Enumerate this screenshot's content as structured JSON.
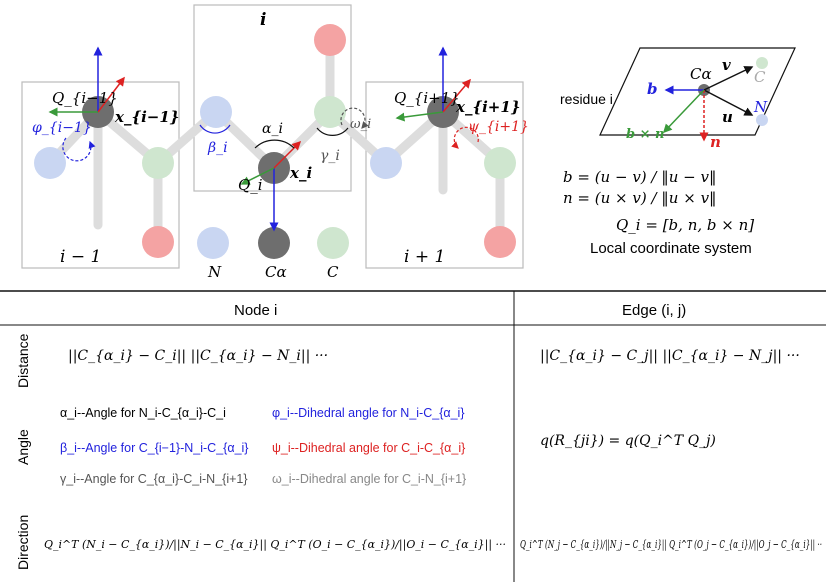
{
  "diagram": {
    "residue_box_labels": [
      "i − 1",
      "i",
      "i + 1"
    ],
    "atom_legend": [
      "N",
      "Cα",
      "C"
    ],
    "frame_labels": [
      "Q_{i−1}",
      "Q_i",
      "Q_{i+1}"
    ],
    "position_labels": [
      "x_{i−1}",
      "x_i",
      "x_{i+1}"
    ],
    "angle_labels": [
      "α_i",
      "β_i",
      "γ_i",
      "ω_i",
      "φ_{i−1}",
      "ψ_{i+1}"
    ],
    "local_frame": {
      "residue_label": "residue i",
      "atom_labels": [
        "Cα",
        "C",
        "N"
      ],
      "vector_labels": [
        "v",
        "u",
        "b",
        "n",
        "b × n"
      ],
      "formula_b": "b = (u − v) / ‖u − v‖",
      "formula_n": "n = (u × v) / ‖u × v‖",
      "formula_Q": "Q_i = [b, n, b × n]",
      "caption": "Local coordinate system"
    },
    "colors": {
      "N": "#c9d6f2",
      "CA": "#6e6e6e",
      "C": "#cfe6cf",
      "O": "#f4a3a3",
      "bond": "#dddddd",
      "blue": "#2222dd",
      "red": "#dd2222",
      "green": "#3a9a3a",
      "gray": "#888888"
    }
  },
  "table": {
    "col_headers": [
      "Node i",
      "Edge (i, j)"
    ],
    "row_headers": [
      "Distance",
      "Angle",
      "Direction"
    ],
    "node_distance": "||C_{α_i} − C_i||   ||C_{α_i} − N_i||   ···",
    "edge_distance": "||C_{α_i} − C_j||   ||C_{α_i} − N_j||   ···",
    "node_angles": [
      "α_i--Angle for N_i-C_{α_i}-C_i",
      "φ_i--Dihedral angle for N_i-C_{α_i}",
      "β_i--Angle for C_{i−1}-N_i-C_{α_i}",
      "ψ_i--Dihedral angle for C_i-C_{α_i}",
      "γ_i--Angle for C_{α_i}-C_i-N_{i+1}",
      "ω_i--Dihedral angle for C_i-N_{i+1}"
    ],
    "edge_angle": "q(R_{ji}) = q(Q_i^T Q_j)",
    "node_direction": "Q_i^T (N_i − C_{α_i})/||N_i − C_{α_i}||   Q_i^T (O_i − C_{α_i})/||O_i − C_{α_i}||   ···",
    "edge_direction": "Q_i^T (N_j − C_{α_i})/||N_j − C_{α_i}||   Q_i^T (O_j − C_{α_i})/||O_j − C_{α_i}||   ··"
  }
}
